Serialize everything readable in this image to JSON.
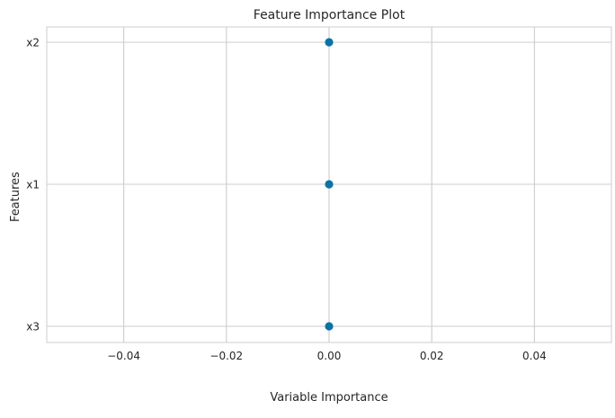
{
  "chart_data": {
    "type": "scatter",
    "title": "Feature Importance Plot",
    "xlabel": "Variable Importance",
    "ylabel": "Features",
    "xlim": [
      -0.055,
      0.055
    ],
    "xticks": [
      -0.04,
      -0.02,
      0.0,
      0.02,
      0.04
    ],
    "xtick_labels": [
      "−0.04",
      "−0.02",
      "0.00",
      "0.02",
      "0.04"
    ],
    "categories": [
      "x2",
      "x1",
      "x3"
    ],
    "points": [
      {
        "feature": "x2",
        "importance": 0.0
      },
      {
        "feature": "x1",
        "importance": 0.0
      },
      {
        "feature": "x3",
        "importance": 0.0
      }
    ],
    "grid": true,
    "colors": {
      "marker": "#0b72a8",
      "grid": "#cccccc",
      "frame": "#cccccc"
    }
  }
}
